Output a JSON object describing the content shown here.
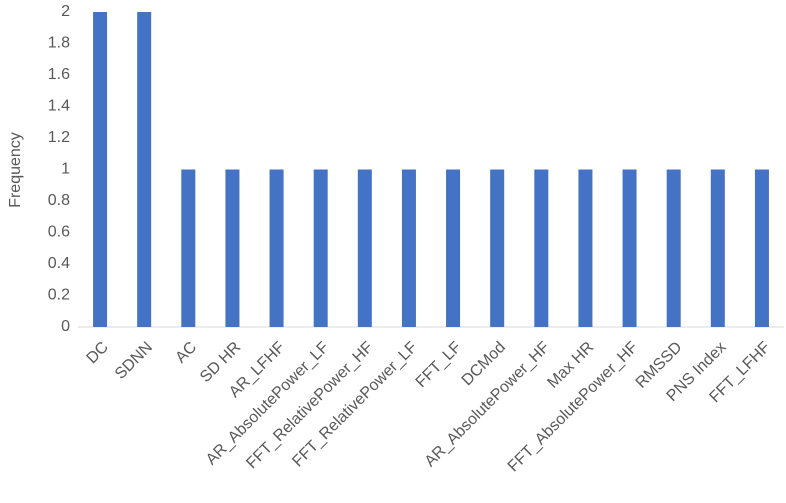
{
  "chart_data": {
    "type": "bar",
    "y_label": "Frequency",
    "categories": [
      "DC",
      "SDNN",
      "AC",
      "SD HR",
      "AR_LFHF",
      "AR_AbsolutePower_LF",
      "FFT_RelativePower_HF",
      "FFT_RelativePower_LF",
      "FFT_LF",
      "DCMod",
      "AR_AbsolutePower_HF",
      "Max HR",
      "FFT_AbsolutePower_HF",
      "RMSSD",
      "PNS Index",
      "FFT_LFHF"
    ],
    "values": [
      2,
      2,
      1,
      1,
      1,
      1,
      1,
      1,
      1,
      1,
      1,
      1,
      1,
      1,
      1,
      1
    ],
    "color": "#4472c4",
    "ylim": [
      0,
      2
    ],
    "yticks": [
      0,
      0.2,
      0.4,
      0.6,
      0.8,
      1,
      1.2,
      1.4,
      1.6,
      1.8,
      2
    ],
    "grid": false
  }
}
